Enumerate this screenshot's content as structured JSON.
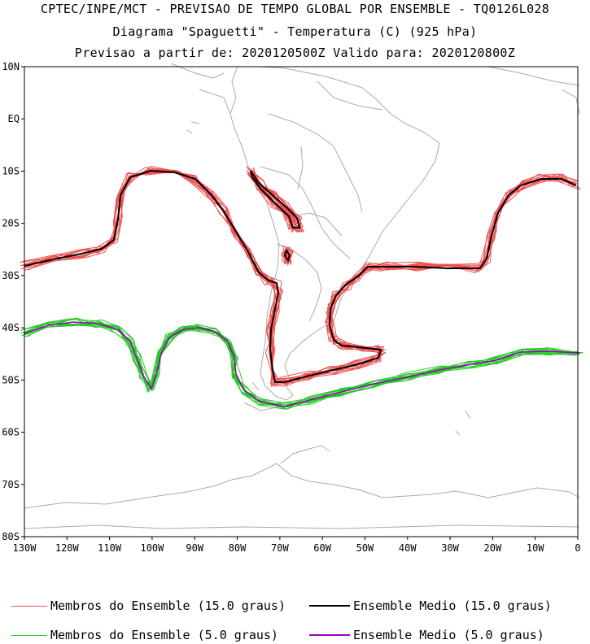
{
  "titles": {
    "line1": "CPTEC/INPE/MCT - PREVISAO DE TEMPO GLOBAL POR ENSEMBLE - TQ0126L028",
    "line2": "Diagrama \"Spaguetti\" - Temperatura (C) (925 hPa)",
    "line3": "Previsao a partir de: 2020120500Z  Valido para: 2020120800Z"
  },
  "axes": {
    "lat_labels": [
      "10N",
      "EQ",
      "10S",
      "20S",
      "30S",
      "40S",
      "50S",
      "60S",
      "70S",
      "80S"
    ],
    "lon_labels": [
      "130W",
      "120W",
      "110W",
      "100W",
      "90W",
      "80W",
      "70W",
      "60W",
      "50W",
      "40W",
      "30W",
      "20W",
      "10W",
      "0"
    ]
  },
  "legend": [
    {
      "label": "Membros do Ensemble (15.0 graus)",
      "color": "#f05050"
    },
    {
      "label": "Ensemble Medio (15.0 graus)",
      "color": "#000000"
    },
    {
      "label": "Membros do Ensemble (5.0 graus)",
      "color": "#22cc22"
    },
    {
      "label": "Ensemble Medio (5.0 graus)",
      "color": "#a000c0"
    }
  ],
  "colors": {
    "coastline": "#aaaaaa",
    "members_15": "#f05050",
    "mean_15": "#000000",
    "members_5": "#22cc22",
    "mean_5": "#a000c0"
  }
}
